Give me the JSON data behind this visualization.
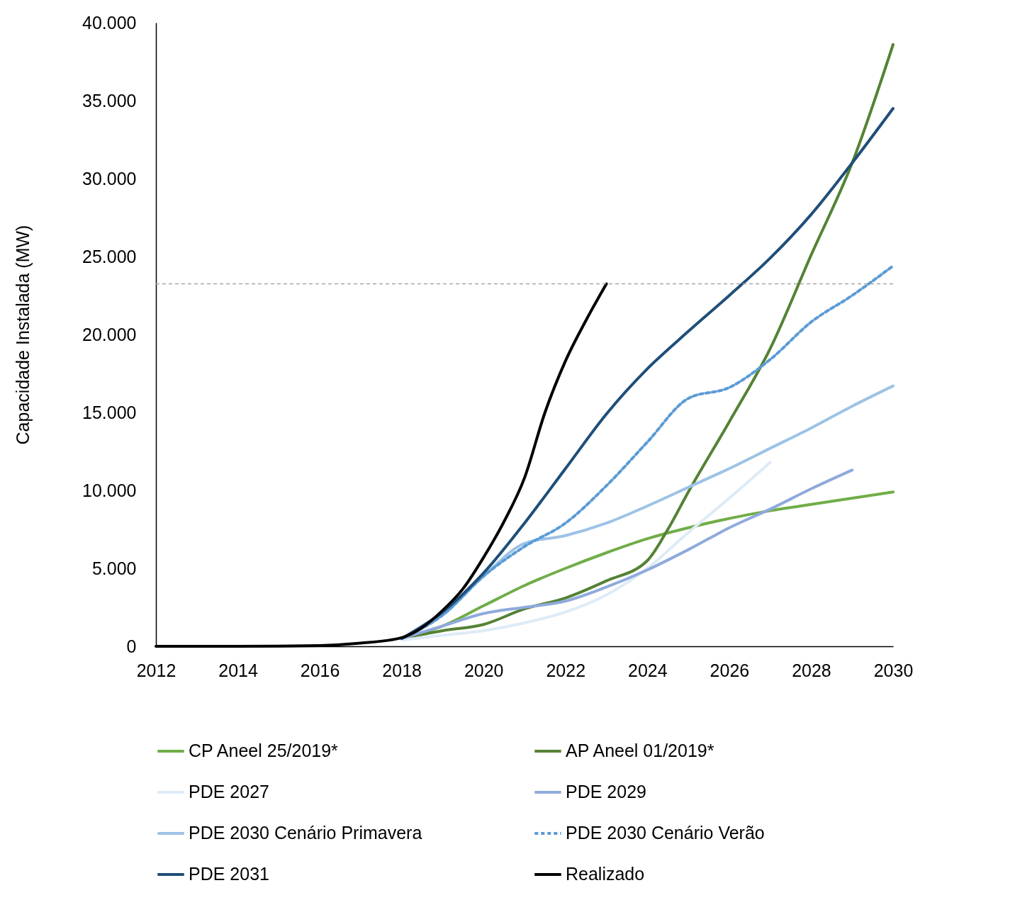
{
  "chart_data": {
    "type": "line",
    "ylabel": "Capacidade Instalada (MW)",
    "xlim": [
      2012,
      2030
    ],
    "xticks": [
      2012,
      2014,
      2016,
      2018,
      2020,
      2022,
      2024,
      2026,
      2028,
      2030
    ],
    "ylim": [
      0,
      40000
    ],
    "yticks": [
      {
        "value": 0,
        "label": "0"
      },
      {
        "value": 5000,
        "label": "5.000"
      },
      {
        "value": 10000,
        "label": "10.000"
      },
      {
        "value": 15000,
        "label": "15.000"
      },
      {
        "value": 20000,
        "label": "20.000"
      },
      {
        "value": 25000,
        "label": "25.000"
      },
      {
        "value": 30000,
        "label": "30.000"
      },
      {
        "value": 35000,
        "label": "35.000"
      },
      {
        "value": 40000,
        "label": "40.000"
      }
    ],
    "grid": false,
    "legend": "bottom",
    "marker": "none",
    "ref_lines": [
      {
        "axis": "y",
        "value": 23250,
        "color": "#a6a6a6",
        "line_style": "dashed"
      }
    ],
    "series": [
      {
        "name": "CP Aneel 25/2019*",
        "color": "#70ad47",
        "x": [
          2018,
          2019,
          2020,
          2021,
          2022,
          2023,
          2024,
          2025,
          2026,
          2027,
          2028,
          2029,
          2030
        ],
        "values": [
          500,
          1300,
          2600,
          3900,
          5000,
          6000,
          6900,
          7600,
          8200,
          8700,
          9100,
          9500,
          9900
        ]
      },
      {
        "name": "AP Aneel 01/2019*",
        "color": "#548235",
        "x": [
          2018,
          2019,
          2020,
          2021,
          2022,
          2023,
          2024,
          2024.5,
          2025,
          2026,
          2027,
          2028,
          2029,
          2030
        ],
        "values": [
          500,
          1000,
          1400,
          2400,
          3100,
          4200,
          5500,
          7500,
          9900,
          14400,
          19100,
          25100,
          31000,
          38600
        ]
      },
      {
        "name": "PDE 2027",
        "color": "#deebf7",
        "x": [
          2018,
          2019,
          2020,
          2021,
          2022,
          2023,
          2024,
          2025,
          2026,
          2027
        ],
        "values": [
          400,
          700,
          1000,
          1500,
          2200,
          3300,
          5000,
          7300,
          9500,
          11800
        ]
      },
      {
        "name": "PDE 2029",
        "color": "#8faadc",
        "x": [
          2018,
          2019,
          2020,
          2021,
          2022,
          2023,
          2024,
          2025,
          2026,
          2027,
          2028,
          2029
        ],
        "values": [
          500,
          1300,
          2100,
          2500,
          2900,
          3800,
          4900,
          6200,
          7600,
          8800,
          10100,
          11300
        ]
      },
      {
        "name": "PDE 2030 Cenário Primavera",
        "color": "#9dc3e6",
        "x": [
          2018,
          2019,
          2020,
          2021,
          2022,
          2023,
          2024,
          2025,
          2026,
          2027,
          2028,
          2029,
          2030
        ],
        "values": [
          500,
          2000,
          4500,
          6600,
          7100,
          7900,
          9000,
          10200,
          11400,
          12700,
          14000,
          15400,
          16700
        ]
      },
      {
        "name": "PDE 2030 Cenário Verão",
        "color": "#5b9bd5",
        "line_style": "dashed",
        "x": [
          2018,
          2019,
          2020,
          2021,
          2022,
          2023,
          2024,
          2025,
          2026,
          2027,
          2028,
          2029,
          2030
        ],
        "values": [
          500,
          2000,
          4500,
          6400,
          7900,
          10300,
          13100,
          15900,
          16600,
          18400,
          20800,
          22500,
          24400
        ]
      },
      {
        "name": "PDE 2031",
        "color": "#1f4e79",
        "x": [
          2018,
          2019,
          2020,
          2021,
          2022,
          2023,
          2024,
          2025,
          2026,
          2027,
          2028,
          2029,
          2030
        ],
        "values": [
          500,
          2200,
          4700,
          7900,
          11400,
          14900,
          17800,
          20200,
          22500,
          24900,
          27700,
          31000,
          34500
        ]
      },
      {
        "name": "Realizado",
        "color": "#000000",
        "x": [
          2012,
          2014,
          2016,
          2017,
          2018,
          2018.5,
          2019,
          2019.5,
          2020,
          2020.5,
          2021,
          2021.5,
          2022,
          2022.5,
          2023
        ],
        "values": [
          0,
          0,
          50,
          200,
          550,
          1200,
          2300,
          3700,
          5700,
          8000,
          10800,
          15000,
          18300,
          20900,
          23250
        ]
      }
    ]
  }
}
